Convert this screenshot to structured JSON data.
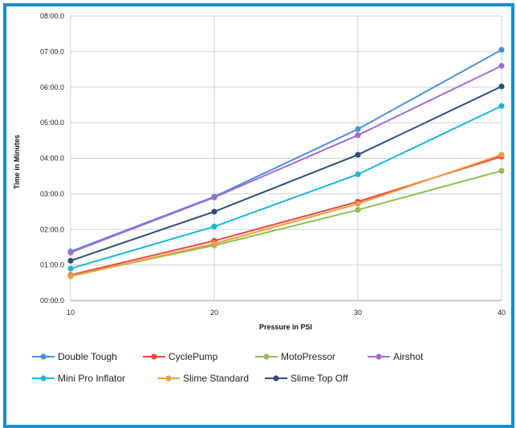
{
  "chart_data": {
    "type": "line",
    "title": "",
    "xlabel": "Pressure in PSI",
    "ylabel": "Time in Minutes",
    "x": [
      10,
      20,
      30,
      40
    ],
    "xlim": [
      10,
      40
    ],
    "ylim": [
      0,
      8
    ],
    "yticks": [
      {
        "v": 0,
        "label": "00:00.0"
      },
      {
        "v": 1,
        "label": "01:00.0"
      },
      {
        "v": 2,
        "label": "02:00.0"
      },
      {
        "v": 3,
        "label": "03:00.0"
      },
      {
        "v": 4,
        "label": "04:00.0"
      },
      {
        "v": 5,
        "label": "05:00.0"
      },
      {
        "v": 6,
        "label": "06:00.0"
      },
      {
        "v": 7,
        "label": "07:00.0"
      },
      {
        "v": 8,
        "label": "08:00.0"
      }
    ],
    "xticks": [
      {
        "v": 10,
        "label": "10"
      },
      {
        "v": 20,
        "label": "20"
      },
      {
        "v": 30,
        "label": "30"
      },
      {
        "v": 40,
        "label": "40"
      }
    ],
    "grid": true,
    "legend_position": "bottom",
    "series": [
      {
        "name": "Double Tough",
        "color": "#4a90d9",
        "values": [
          1.38,
          2.92,
          4.82,
          7.05
        ]
      },
      {
        "name": "CyclePump",
        "color": "#e8473f",
        "values": [
          0.72,
          1.68,
          2.78,
          4.05
        ]
      },
      {
        "name": "MotoPressor",
        "color": "#8cc152",
        "values": [
          0.7,
          1.55,
          2.55,
          3.65
        ]
      },
      {
        "name": "Airshot",
        "color": "#a26bd1",
        "values": [
          1.35,
          2.9,
          4.65,
          6.6
        ]
      },
      {
        "name": "Mini Pro Inflator",
        "color": "#1ab7d4",
        "values": [
          0.9,
          2.08,
          3.55,
          5.47
        ]
      },
      {
        "name": "Slime Standard",
        "color": "#f39c3d",
        "values": [
          0.68,
          1.6,
          2.72,
          4.1
        ]
      },
      {
        "name": "Slime Top Off",
        "color": "#2e4d7b",
        "values": [
          1.12,
          2.5,
          4.1,
          6.02
        ]
      }
    ]
  }
}
